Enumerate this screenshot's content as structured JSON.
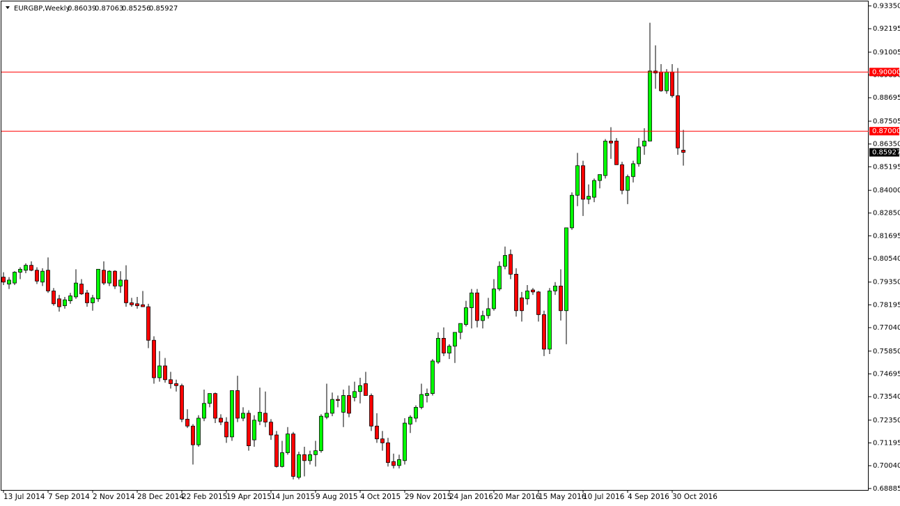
{
  "chart_data": {
    "type": "candlestick",
    "title": "EURGBP,Weekly",
    "categories": [
      "13 Jul 2014",
      null,
      null,
      null,
      null,
      null,
      null,
      null,
      "7 Sep 2014",
      null,
      null,
      null,
      null,
      null,
      null,
      null,
      "2 Nov 2014",
      null,
      null,
      null,
      null,
      null,
      null,
      null,
      "28 Dec 2014",
      null,
      null,
      null,
      null,
      null,
      null,
      null,
      "22 Feb 2015",
      null,
      null,
      null,
      null,
      null,
      null,
      null,
      "19 Apr 2015",
      null,
      null,
      null,
      null,
      null,
      null,
      null,
      "14 Jun 2015",
      null,
      null,
      null,
      null,
      null,
      null,
      null,
      "9 Aug 2015",
      null,
      null,
      null,
      null,
      null,
      null,
      null,
      "4 Oct 2015",
      null,
      null,
      null,
      null,
      null,
      null,
      null,
      "29 Nov 2015",
      null,
      null,
      null,
      null,
      null,
      null,
      null,
      "24 Jan 2016",
      null,
      null,
      null,
      null,
      null,
      null,
      null,
      "20 Mar 2016",
      null,
      null,
      null,
      null,
      null,
      null,
      null,
      "15 May 2016",
      null,
      null,
      null,
      null,
      null,
      null,
      null,
      "10 Jul 2016",
      null,
      null,
      null,
      null,
      null,
      null,
      null,
      "4 Sep 2016",
      null,
      null,
      null,
      null,
      null,
      null,
      null,
      "30 Oct 2016",
      null,
      null
    ],
    "open": [
      0.796,
      0.7925,
      0.793,
      0.7985,
      0.7995,
      0.802,
      0.7995,
      0.7935,
      0.7995,
      0.789,
      0.785,
      0.7815,
      0.784,
      0.786,
      0.7925,
      0.788,
      0.783,
      0.785,
      0.7995,
      0.793,
      0.799,
      0.7915,
      0.7945,
      0.783,
      0.7825,
      0.782,
      0.781,
      0.764,
      0.745,
      0.751,
      0.744,
      0.742,
      0.741,
      0.724,
      0.7205,
      0.711,
      0.7245,
      0.732,
      0.737,
      0.7245,
      0.7225,
      0.715,
      0.7385,
      0.7245,
      0.727,
      0.7135,
      0.723,
      0.727,
      0.7225,
      0.716,
      0.7,
      0.707,
      0.7165,
      0.6945,
      0.706,
      0.703,
      0.706,
      0.708,
      0.725,
      0.727,
      0.734,
      0.7275,
      0.736,
      0.735,
      0.738,
      0.742,
      0.736,
      0.7205,
      0.714,
      0.712,
      0.7025,
      0.7005,
      0.703,
      0.7215,
      0.7245,
      0.73,
      0.736,
      0.737,
      0.753,
      0.765,
      0.7575,
      0.761,
      0.768,
      0.772,
      0.7805,
      0.788,
      0.774,
      0.7765,
      0.78,
      0.79,
      0.8015,
      0.8075,
      0.7975,
      0.7855,
      0.785,
      0.7895,
      0.7885,
      0.777,
      0.7595,
      0.789,
      0.7915,
      0.779,
      0.821,
      0.8375,
      0.8525,
      0.8355,
      0.8365,
      0.845,
      0.8475,
      0.865,
      0.865,
      0.853,
      0.84,
      0.847,
      0.8535,
      0.8625,
      0.865,
      0.9005,
      0.9,
      0.8905,
      0.9,
      0.888,
      0.86039
    ],
    "high": [
      0.7985,
      0.796,
      0.799,
      0.801,
      0.803,
      0.804,
      0.801,
      0.8005,
      0.806,
      0.7905,
      0.787,
      0.786,
      0.788,
      0.8,
      0.795,
      0.7895,
      0.787,
      0.8,
      0.804,
      0.7995,
      0.7995,
      0.799,
      0.802,
      0.7855,
      0.786,
      0.789,
      0.7825,
      0.766,
      0.7585,
      0.755,
      0.748,
      0.744,
      0.742,
      0.729,
      0.7215,
      0.726,
      0.739,
      0.737,
      0.7375,
      0.7265,
      0.725,
      0.7385,
      0.746,
      0.73,
      0.7285,
      0.726,
      0.74,
      0.738,
      0.724,
      0.718,
      0.713,
      0.72,
      0.7175,
      0.7075,
      0.71,
      0.708,
      0.713,
      0.7265,
      0.742,
      0.7375,
      0.736,
      0.739,
      0.741,
      0.743,
      0.745,
      0.748,
      0.737,
      0.727,
      0.718,
      0.7145,
      0.7065,
      0.706,
      0.7245,
      0.726,
      0.731,
      0.742,
      0.7395,
      0.7545,
      0.768,
      0.7705,
      0.762,
      0.768,
      0.772,
      0.784,
      0.79,
      0.79,
      0.779,
      0.7855,
      0.795,
      0.804,
      0.8115,
      0.81,
      0.8005,
      0.7885,
      0.792,
      0.7905,
      0.789,
      0.779,
      0.7905,
      0.7935,
      0.8,
      0.821,
      0.839,
      0.859,
      0.855,
      0.843,
      0.846,
      0.848,
      0.866,
      0.872,
      0.8665,
      0.8545,
      0.848,
      0.855,
      0.8665,
      0.8715,
      0.925,
      0.9135,
      0.904,
      0.9015,
      0.904,
      0.902,
      0.87063
    ],
    "low": [
      0.792,
      0.79,
      0.792,
      0.795,
      0.798,
      0.799,
      0.7925,
      0.7915,
      0.788,
      0.7815,
      0.7785,
      0.78,
      0.7825,
      0.785,
      0.787,
      0.781,
      0.779,
      0.7835,
      0.792,
      0.7915,
      0.79,
      0.788,
      0.781,
      0.781,
      0.78,
      0.781,
      0.76,
      0.742,
      0.743,
      0.7425,
      0.7395,
      0.738,
      0.7225,
      0.7195,
      0.701,
      0.71,
      0.723,
      0.73,
      0.722,
      0.721,
      0.712,
      0.713,
      0.7225,
      0.723,
      0.708,
      0.71,
      0.721,
      0.72,
      0.7135,
      0.6995,
      0.6995,
      0.706,
      0.6935,
      0.6935,
      0.695,
      0.701,
      0.7,
      0.707,
      0.724,
      0.7255,
      0.73,
      0.72,
      0.725,
      0.733,
      0.732,
      0.736,
      0.718,
      0.712,
      0.708,
      0.7,
      0.699,
      0.699,
      0.701,
      0.717,
      0.7225,
      0.729,
      0.7325,
      0.736,
      0.752,
      0.756,
      0.7545,
      0.7525,
      0.7645,
      0.771,
      0.77,
      0.7705,
      0.77,
      0.775,
      0.779,
      0.789,
      0.8,
      0.795,
      0.776,
      0.7735,
      0.782,
      0.787,
      0.7735,
      0.756,
      0.757,
      0.787,
      0.774,
      0.762,
      0.82,
      0.832,
      0.827,
      0.833,
      0.834,
      0.841,
      0.846,
      0.856,
      0.853,
      0.838,
      0.833,
      0.844,
      0.852,
      0.858,
      0.865,
      0.8915,
      0.89,
      0.889,
      0.887,
      0.858,
      0.85256
    ],
    "close": [
      0.7935,
      0.7945,
      0.7985,
      0.8,
      0.802,
      0.7995,
      0.794,
      0.799,
      0.789,
      0.7825,
      0.781,
      0.7845,
      0.7865,
      0.793,
      0.7875,
      0.783,
      0.7855,
      0.8,
      0.793,
      0.799,
      0.7915,
      0.7945,
      0.783,
      0.782,
      0.7815,
      0.781,
      0.764,
      0.745,
      0.751,
      0.744,
      0.742,
      0.741,
      0.724,
      0.7205,
      0.711,
      0.7245,
      0.732,
      0.737,
      0.7245,
      0.7225,
      0.715,
      0.7385,
      0.7245,
      0.727,
      0.7105,
      0.7235,
      0.7275,
      0.7225,
      0.716,
      0.7,
      0.707,
      0.7165,
      0.695,
      0.706,
      0.703,
      0.706,
      0.708,
      0.7255,
      0.727,
      0.734,
      0.7335,
      0.736,
      0.727,
      0.738,
      0.741,
      0.736,
      0.7205,
      0.714,
      0.712,
      0.702,
      0.7005,
      0.7035,
      0.722,
      0.725,
      0.73,
      0.7365,
      0.737,
      0.7535,
      0.765,
      0.7575,
      0.761,
      0.768,
      0.7725,
      0.7805,
      0.788,
      0.774,
      0.7765,
      0.78,
      0.79,
      0.8015,
      0.807,
      0.7975,
      0.779,
      0.779,
      0.789,
      0.7885,
      0.777,
      0.7595,
      0.789,
      0.7915,
      0.779,
      0.821,
      0.8375,
      0.8525,
      0.8355,
      0.837,
      0.845,
      0.848,
      0.865,
      0.864,
      0.853,
      0.84,
      0.847,
      0.8535,
      0.862,
      0.865,
      0.9005,
      0.8995,
      0.8905,
      0.9,
      0.888,
      0.8615,
      0.85927
    ],
    "up_color": "#00ff00",
    "down_color": "#ff0000",
    "wick_color": "#000000",
    "ylim": [
      0.6881,
      0.9358
    ],
    "yticks": [
      {
        "value": 0.9335,
        "label": "0.93350"
      },
      {
        "value": 0.92195,
        "label": "0.92195"
      },
      {
        "value": 0.91005,
        "label": "0.91005"
      },
      {
        "value": 0.8985,
        "label": "0.89850"
      },
      {
        "value": 0.88695,
        "label": "0.88695"
      },
      {
        "value": 0.87505,
        "label": "0.87505"
      },
      {
        "value": 0.8635,
        "label": "0.86350"
      },
      {
        "value": 0.85195,
        "label": "0.85195"
      },
      {
        "value": 0.84,
        "label": "0.84000"
      },
      {
        "value": 0.8285,
        "label": "0.82850"
      },
      {
        "value": 0.81695,
        "label": "0.81695"
      },
      {
        "value": 0.8054,
        "label": "0.80540"
      },
      {
        "value": 0.7935,
        "label": "0.79350"
      },
      {
        "value": 0.78195,
        "label": "0.78195"
      },
      {
        "value": 0.7704,
        "label": "0.77040"
      },
      {
        "value": 0.7585,
        "label": "0.75850"
      },
      {
        "value": 0.74695,
        "label": "0.74695"
      },
      {
        "value": 0.7354,
        "label": "0.73540"
      },
      {
        "value": 0.7235,
        "label": "0.72350"
      },
      {
        "value": 0.71195,
        "label": "0.71195"
      },
      {
        "value": 0.7004,
        "label": "0.70040"
      },
      {
        "value": 0.68885,
        "label": "0.68885"
      }
    ],
    "hlines": [
      {
        "value": 0.9,
        "label": "0.90000"
      },
      {
        "value": 0.87,
        "label": "0.87000"
      }
    ],
    "hline_color": "#ff0000"
  }
}
